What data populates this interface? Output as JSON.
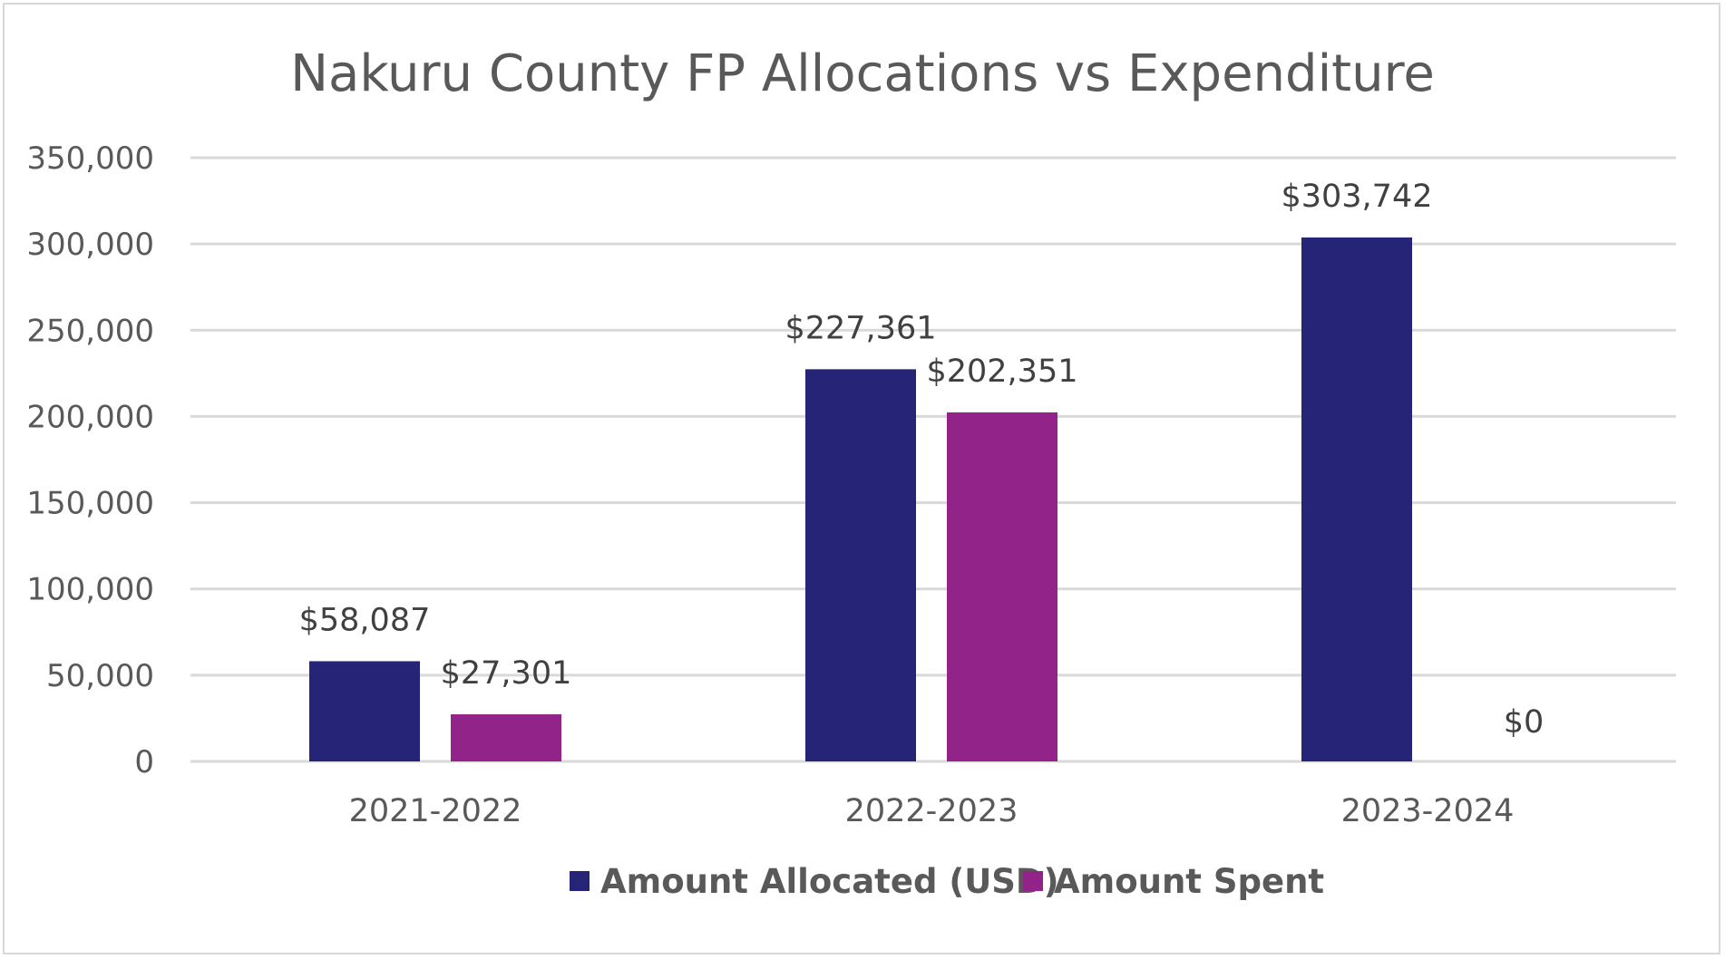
{
  "chart_data": {
    "type": "bar",
    "title": "Nakuru County FP Allocations vs Expenditure",
    "xlabel": "",
    "ylabel": "",
    "categories": [
      "2021-2022",
      "2022-2023",
      "2023-2024"
    ],
    "series": [
      {
        "name": "Amount Allocated (USD)",
        "values": [
          58087,
          227361,
          303742
        ],
        "labels": [
          "$58,087",
          "$227,361",
          "$303,742"
        ],
        "color": "#262477"
      },
      {
        "name": "Amount Spent",
        "values": [
          27301,
          202351,
          0
        ],
        "labels": [
          "$27,301",
          "$202,351",
          "$0"
        ],
        "color": "#922388"
      }
    ],
    "ylim": [
      0,
      350000
    ],
    "yticks": [
      0,
      50000,
      100000,
      150000,
      200000,
      250000,
      300000,
      350000
    ],
    "ytick_labels": [
      "0",
      "50,000",
      "100,000",
      "150,000",
      "200,000",
      "250,000",
      "300,000",
      "350,000"
    ],
    "grid": true,
    "gridline_color": "#d9d9d9",
    "legend_position": "bottom"
  }
}
